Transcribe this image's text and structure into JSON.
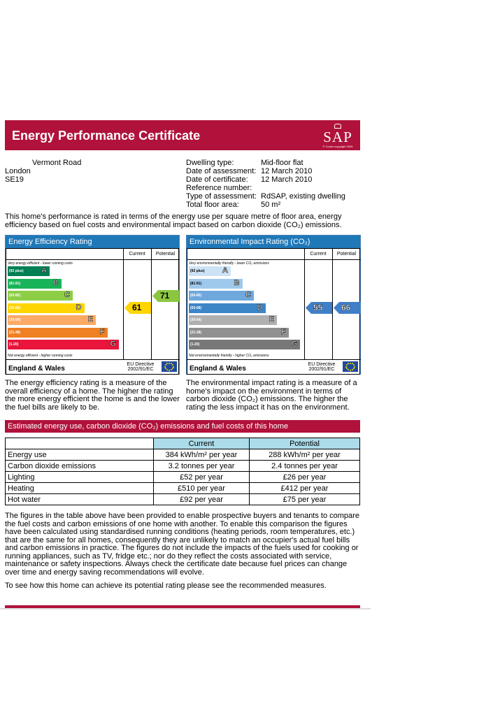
{
  "header": {
    "title": "Energy Performance Certificate",
    "logo_text": "SAP",
    "logo_small": "© Crown copyright 2005"
  },
  "address": {
    "street": "Vermont Road",
    "city": "London",
    "postcode": "SE19"
  },
  "dwelling_info": [
    {
      "label": "Dwelling type:",
      "value": "Mid-floor flat"
    },
    {
      "label": "Date of assessment:",
      "value": "12 March 2010"
    },
    {
      "label": "Date of certificate:",
      "value": "12 March 2010"
    },
    {
      "label": "Reference number:",
      "value": ""
    },
    {
      "label": "Type of assessment:",
      "value": "RdSAP, existing dwelling"
    },
    {
      "label": "Total floor area:",
      "value": "50 m²"
    }
  ],
  "intro_text": "This home's performance is rated in terms of the energy use per square metre of floor area, energy efficiency based on fuel costs and environmental impact based on carbon dioxide (CO₂) emissions.",
  "energy_rating": {
    "title": "Energy Efficiency Rating",
    "col_current": "Current",
    "col_potential": "Potential",
    "top_note": "Very energy efficient - lower running costs",
    "bottom_note": "Not energy efficient - higher running costs",
    "current": 61,
    "potential": 71,
    "current_color": "#ffd500",
    "potential_color": "#8cc63f",
    "bands": [
      {
        "range": "(92 plus)",
        "letter": "A",
        "color": "#008054"
      },
      {
        "range": "(81-91)",
        "letter": "B",
        "color": "#19b459"
      },
      {
        "range": "(69-80)",
        "letter": "C",
        "color": "#8dce46"
      },
      {
        "range": "(55-68)",
        "letter": "D",
        "color": "#ffd500"
      },
      {
        "range": "(39-54)",
        "letter": "E",
        "color": "#fcaa65"
      },
      {
        "range": "(21-38)",
        "letter": "F",
        "color": "#ef8023"
      },
      {
        "range": "(1-20)",
        "letter": "G",
        "color": "#e9153b"
      }
    ],
    "region": "England & Wales",
    "directive": "EU Directive 2002/91/EC"
  },
  "environment_rating": {
    "title": "Environmental Impact Rating (CO₂)",
    "col_current": "Current",
    "col_potential": "Potential",
    "top_note": "Very environmentally friendly - lower CO₂ emissions",
    "bottom_note": "Not environmentally friendly - higher CO₂ emissions",
    "current": 55,
    "potential": 66,
    "current_color": "#3f7fc8",
    "potential_color": "#3f7fc8",
    "bands": [
      {
        "range": "(92 plus)",
        "letter": "A",
        "color": "#cde3f5"
      },
      {
        "range": "(81-91)",
        "letter": "B",
        "color": "#9fc9ec"
      },
      {
        "range": "(69-80)",
        "letter": "C",
        "color": "#6fa8dc"
      },
      {
        "range": "(55-68)",
        "letter": "D",
        "color": "#3d85c6"
      },
      {
        "range": "(39-54)",
        "letter": "E",
        "color": "#b0b0b0"
      },
      {
        "range": "(21-38)",
        "letter": "F",
        "color": "#909090"
      },
      {
        "range": "(1-20)",
        "letter": "G",
        "color": "#787878"
      }
    ],
    "region": "England & Wales",
    "directive": "EU Directive 2002/91/EC"
  },
  "energy_explain": "The energy efficiency rating is a measure of the overall efficiency of a home. The higher the rating the more energy efficient the home is and the lower the fuel bills are likely to be.",
  "env_explain": "The environmental impact rating is a measure of a home's impact on the environment in terms of carbon dioxide (CO₂) emissions. The higher the rating the less impact it has on the environment.",
  "estimated": {
    "title": "Estimated energy use, carbon dioxide (CO₂) emissions and fuel costs of this home",
    "col_current": "Current",
    "col_potential": "Potential",
    "rows": [
      {
        "label": "Energy use",
        "current": "384 kWh/m² per year",
        "potential": "288 kWh/m² per year"
      },
      {
        "label": "Carbon dioxide emissions",
        "current": "3.2 tonnes per year",
        "potential": "2.4 tonnes per year"
      },
      {
        "label": "Lighting",
        "current": "£52 per year",
        "potential": "£26 per year"
      },
      {
        "label": "Heating",
        "current": "£510 per year",
        "potential": "£412 per year"
      },
      {
        "label": "Hot water",
        "current": "£92 per year",
        "potential": "£75 per year"
      }
    ]
  },
  "footer_text": "The figures in the table above have been provided to enable prospective buyers and tenants to compare the fuel costs and carbon emissions of one home with another. To enable this comparison the figures have been calculated using standardised running conditions (heating periods, room temperatures, etc.) that are the same for all homes, consequently they are unlikely to match an occupier's actual fuel bills and carbon emissions in practice. The figures do not include the impacts of the fuels used for cooking or running appliances, such as TV, fridge etc.; nor do they reflect the costs associated with service, maintenance or safety inspections. Always check the certificate date because fuel prices can change over time and energy saving recommendations will evolve.",
  "recommend_text": "To see how this home can achieve its potential rating please see the recommended measures."
}
